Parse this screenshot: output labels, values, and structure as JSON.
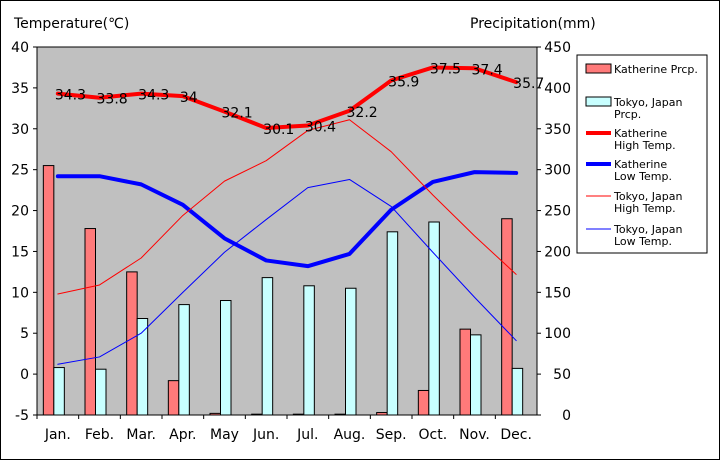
{
  "chart_data": {
    "type": "bar",
    "categories": [
      "Jan.",
      "Feb.",
      "Mar.",
      "Apr.",
      "May",
      "Jun.",
      "Jul.",
      "Aug.",
      "Sep.",
      "Oct.",
      "Nov.",
      "Dec."
    ],
    "left_axis": {
      "label": "Temperature(℃)",
      "min": -5,
      "max": 40,
      "step": 5,
      "ticks": [
        "-5",
        "0",
        "5",
        "10",
        "15",
        "20",
        "25",
        "30",
        "35",
        "40"
      ]
    },
    "right_axis": {
      "label": "Precipitation(mm)",
      "min": 0,
      "max": 450,
      "step": 50,
      "ticks": [
        "0",
        "50",
        "100",
        "150",
        "200",
        "250",
        "300",
        "350",
        "400",
        "450"
      ]
    },
    "grid": false,
    "legend_position": "right",
    "series": [
      {
        "name": "Katherine Prcp.",
        "type": "bar",
        "axis": "right",
        "color": "#ff7a7a",
        "values": [
          305,
          228,
          175,
          42,
          2,
          1,
          1,
          1,
          3,
          30,
          105,
          240
        ]
      },
      {
        "name": "Tokyo, Japan Prcp.",
        "type": "bar",
        "axis": "right",
        "color": "#c8ffff",
        "values": [
          58,
          56,
          118,
          135,
          140,
          168,
          158,
          155,
          224,
          236,
          98,
          57
        ]
      },
      {
        "name": "Katherine High Temp.",
        "type": "line",
        "axis": "left",
        "color": "#ff0000",
        "width": 4,
        "values": [
          34.3,
          33.8,
          34.3,
          34,
          32.1,
          30.1,
          30.4,
          32.2,
          35.9,
          37.5,
          37.4,
          35.7
        ],
        "labels": [
          "34.3",
          "33.8",
          "34.3",
          "34",
          "32.1",
          "30.1",
          "30.4",
          "32.2",
          "35.9",
          "37.5",
          "37.4",
          "35.7"
        ]
      },
      {
        "name": "Katherine Low Temp.",
        "type": "line",
        "axis": "left",
        "color": "#0000ff",
        "width": 4,
        "values": [
          24.2,
          24.2,
          23.2,
          20.7,
          16.6,
          13.9,
          13.2,
          14.7,
          20.1,
          23.5,
          24.7,
          24.6
        ]
      },
      {
        "name": "Tokyo, Japan High Temp.",
        "type": "line",
        "axis": "left",
        "color": "#ff0000",
        "width": 1,
        "values": [
          9.8,
          10.9,
          14.2,
          19.4,
          23.6,
          26.1,
          29.8,
          31.1,
          27.2,
          21.9,
          16.9,
          12.2
        ]
      },
      {
        "name": "Tokyo, Japan Low Temp.",
        "type": "line",
        "axis": "left",
        "color": "#0000ff",
        "width": 1,
        "values": [
          1.2,
          2.1,
          5.0,
          10.0,
          14.9,
          18.9,
          22.8,
          23.8,
          20.5,
          14.9,
          9.4,
          4.1
        ]
      }
    ]
  },
  "legend": [
    {
      "lines": [
        "Katherine Prcp."
      ],
      "kind": "box",
      "color": "#ff7a7a"
    },
    {
      "lines": [
        "Tokyo, Japan",
        "Prcp."
      ],
      "kind": "box",
      "color": "#c8ffff"
    },
    {
      "lines": [
        "Katherine",
        " High Temp."
      ],
      "kind": "line",
      "color": "#ff0000",
      "width": 4
    },
    {
      "lines": [
        "Katherine",
        " Low Temp."
      ],
      "kind": "line",
      "color": "#0000ff",
      "width": 4
    },
    {
      "lines": [
        "Tokyo, Japan",
        "High Temp."
      ],
      "kind": "line",
      "color": "#ff0000",
      "width": 1
    },
    {
      "lines": [
        "Tokyo, Japan",
        "Low Temp."
      ],
      "kind": "line",
      "color": "#0000ff",
      "width": 1
    }
  ],
  "colors": {
    "plot_background": "#c0c0c0",
    "frame": "#000000"
  }
}
